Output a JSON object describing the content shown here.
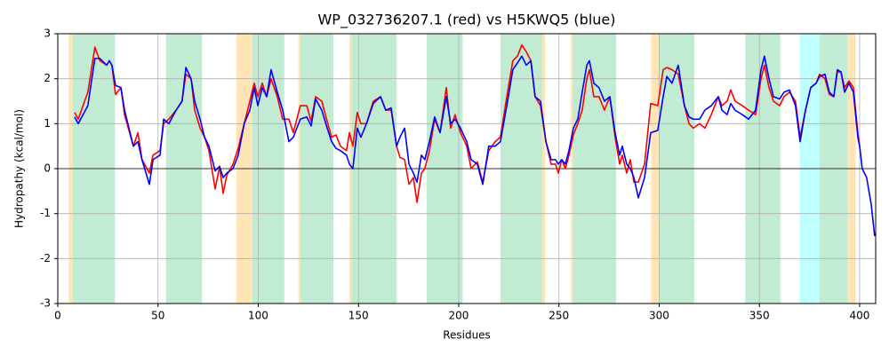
{
  "chart_data": {
    "type": "line",
    "title": "WP_032736207.1 (red) vs H5KWQ5 (blue)",
    "x_label": "Residues",
    "y_label": "Hydropathy (kcal/mol)",
    "xlim": [
      0,
      408
    ],
    "ylim": [
      -3,
      3
    ],
    "xticks": [
      0,
      50,
      100,
      150,
      200,
      250,
      300,
      350,
      400
    ],
    "yticks": [
      -3,
      -2,
      -1,
      0,
      1,
      2,
      3
    ],
    "grid": true,
    "zero_line": true,
    "regions": [
      {
        "start": 5.5,
        "end": 7.5,
        "color": "#ffe4b5"
      },
      {
        "start": 7.5,
        "end": 28.5,
        "color": "#c1ecd3"
      },
      {
        "start": 54,
        "end": 72,
        "color": "#c1ecd3"
      },
      {
        "start": 89,
        "end": 97,
        "color": "#ffe4b5"
      },
      {
        "start": 97,
        "end": 113,
        "color": "#c1ecd3"
      },
      {
        "start": 120,
        "end": 121,
        "color": "#ffe4b5"
      },
      {
        "start": 121,
        "end": 137.5,
        "color": "#c1ecd3"
      },
      {
        "start": 145.5,
        "end": 146.5,
        "color": "#ffe4b5"
      },
      {
        "start": 146.5,
        "end": 169,
        "color": "#c1ecd3"
      },
      {
        "start": 184,
        "end": 202,
        "color": "#c1ecd3"
      },
      {
        "start": 220.8,
        "end": 241.7,
        "color": "#c1ecd3"
      },
      {
        "start": 241.7,
        "end": 243,
        "color": "#ffe4b5"
      },
      {
        "start": 256,
        "end": 257,
        "color": "#ffe4b5"
      },
      {
        "start": 257,
        "end": 278.5,
        "color": "#c1ecd3"
      },
      {
        "start": 296,
        "end": 300,
        "color": "#ffe4b5"
      },
      {
        "start": 300,
        "end": 317.5,
        "color": "#c1ecd3"
      },
      {
        "start": 343,
        "end": 360.5,
        "color": "#c1ecd3"
      },
      {
        "start": 370,
        "end": 380,
        "color": "#c0ffff"
      },
      {
        "start": 380,
        "end": 394,
        "color": "#c1ecd3"
      },
      {
        "start": 394,
        "end": 398,
        "color": "#ffe4b5"
      }
    ],
    "x": [
      8.4,
      10.2,
      15,
      18.5,
      21,
      24.4,
      25.7,
      27,
      28.8,
      31.5,
      33.3,
      37.7,
      40,
      42,
      45.7,
      47.5,
      51,
      52.8,
      55.4,
      59,
      62,
      63.9,
      66.5,
      68.3,
      71,
      73.2,
      75.4,
      78.5,
      80.7,
      82.5,
      84.3,
      87.4,
      90,
      93,
      95.8,
      98,
      99.8,
      102,
      104.2,
      106.4,
      109.5,
      112.2,
      115.3,
      117.5,
      121,
      124.2,
      126.4,
      128.6,
      131.7,
      134.4,
      136.6,
      138.8,
      141,
      144,
      145.5,
      147.2,
      149.4,
      151.2,
      154,
      157.4,
      161,
      163.6,
      166.3,
      169,
      170.7,
      173,
      175.2,
      177.4,
      179.2,
      181.4,
      183.1,
      185.4,
      188,
      190.7,
      193.8,
      196,
      198.2,
      200.9,
      204,
      206.2,
      209.3,
      212,
      215,
      218.2,
      220.8,
      224,
      227,
      229.3,
      231.5,
      233.7,
      236,
      238.1,
      240.8,
      243.5,
      246.1,
      248.3,
      249.7,
      251.4,
      253.2,
      255,
      257.2,
      259.4,
      261.6,
      263.9,
      265.2,
      267.4,
      270,
      272.7,
      275.4,
      278,
      280.3,
      281.6,
      283.8,
      285.6,
      287.4,
      289.6,
      292.7,
      295.8,
      299.3,
      302,
      303.8,
      306.4,
      309.5,
      312.6,
      314.9,
      317,
      320.2,
      322.8,
      326,
      329.5,
      331.3,
      333.9,
      335.7,
      337.9,
      341.5,
      344.6,
      348.1,
      350.8,
      352.5,
      354.8,
      357,
      360.1,
      362.3,
      365,
      368,
      370.3,
      373,
      375.6,
      378.3,
      380,
      382.7,
      384.9,
      387.1,
      388.9,
      390.7,
      392.5,
      394.7,
      396.9,
      399.1,
      400,
      401.3,
      403.5,
      405.8,
      407.5
    ],
    "series": [
      {
        "color": "#ff0000",
        "values": [
          1.25,
          1.1,
          1.7,
          2.7,
          2.4,
          2.3,
          2.4,
          2.3,
          1.65,
          1.8,
          1.2,
          0.5,
          0.8,
          0.2,
          -0.1,
          0.3,
          0.4,
          1.0,
          1.1,
          1.3,
          1.5,
          2.1,
          2.0,
          1.3,
          0.9,
          0.7,
          0.4,
          -0.45,
          0.05,
          -0.55,
          -0.15,
          0.1,
          0.45,
          1.0,
          1.5,
          1.9,
          1.6,
          1.9,
          1.6,
          2.0,
          1.6,
          1.1,
          1.1,
          0.8,
          1.4,
          1.4,
          1.05,
          1.6,
          1.5,
          1.05,
          0.7,
          0.75,
          0.5,
          0.4,
          0.8,
          0.5,
          1.25,
          1.0,
          1.0,
          1.5,
          1.6,
          1.3,
          1.3,
          0.5,
          0.25,
          0.2,
          -0.35,
          -0.2,
          -0.75,
          -0.1,
          0.0,
          0.4,
          1.1,
          0.8,
          1.8,
          0.9,
          1.2,
          0.8,
          0.5,
          0.0,
          0.15,
          -0.3,
          0.4,
          0.6,
          0.7,
          1.6,
          2.4,
          2.5,
          2.75,
          2.6,
          2.4,
          1.6,
          1.4,
          0.6,
          0.1,
          0.1,
          -0.1,
          0.2,
          0.0,
          0.3,
          0.75,
          1.0,
          1.3,
          2.0,
          2.2,
          1.6,
          1.6,
          1.3,
          1.6,
          0.7,
          0.1,
          0.3,
          -0.1,
          0.2,
          -0.3,
          -0.3,
          0.1,
          1.45,
          1.4,
          2.2,
          2.25,
          2.2,
          2.1,
          1.4,
          1.0,
          0.9,
          1.0,
          0.9,
          1.2,
          1.6,
          1.4,
          1.5,
          1.75,
          1.5,
          1.4,
          1.3,
          1.2,
          2.0,
          2.3,
          1.8,
          1.5,
          1.4,
          1.6,
          1.7,
          1.5,
          0.7,
          1.3,
          1.8,
          1.9,
          2.1,
          2.0,
          1.65,
          1.6,
          2.15,
          2.15,
          1.8,
          1.95,
          1.8,
          0.8,
          0.5,
          null,
          null,
          null,
          null
        ]
      },
      {
        "color": "#0000ff",
        "values": [
          1.15,
          1.0,
          1.4,
          2.45,
          2.45,
          2.3,
          2.4,
          2.3,
          1.85,
          1.8,
          1.3,
          0.5,
          0.6,
          0.2,
          -0.35,
          0.2,
          0.3,
          1.1,
          1.0,
          1.3,
          1.5,
          2.25,
          2.0,
          1.5,
          1.1,
          0.7,
          0.5,
          -0.05,
          0.05,
          -0.2,
          -0.1,
          0.0,
          0.3,
          1.0,
          1.3,
          1.8,
          1.4,
          1.8,
          1.6,
          2.2,
          1.7,
          1.3,
          0.6,
          0.7,
          1.1,
          1.15,
          0.95,
          1.55,
          1.3,
          0.9,
          0.6,
          0.45,
          0.4,
          0.3,
          0.1,
          0.0,
          0.9,
          0.7,
          1.0,
          1.45,
          1.6,
          1.3,
          1.35,
          0.5,
          0.7,
          0.9,
          0.1,
          -0.1,
          -0.3,
          0.3,
          0.2,
          0.6,
          1.15,
          0.8,
          1.6,
          1.0,
          1.1,
          0.9,
          0.6,
          0.2,
          0.1,
          -0.35,
          0.5,
          0.5,
          0.6,
          1.4,
          2.2,
          2.35,
          2.5,
          2.3,
          2.4,
          1.6,
          1.5,
          0.6,
          0.2,
          0.2,
          0.1,
          0.2,
          0.1,
          0.4,
          0.9,
          1.1,
          1.7,
          2.3,
          2.4,
          1.9,
          1.8,
          1.5,
          1.6,
          0.8,
          0.3,
          0.5,
          0.1,
          0.0,
          -0.2,
          -0.65,
          -0.2,
          0.8,
          0.85,
          1.6,
          2.05,
          1.9,
          2.3,
          1.4,
          1.15,
          1.1,
          1.1,
          1.3,
          1.4,
          1.6,
          1.3,
          1.2,
          1.45,
          1.3,
          1.2,
          1.1,
          1.3,
          2.2,
          2.5,
          2.0,
          1.6,
          1.55,
          1.7,
          1.75,
          1.4,
          0.6,
          1.3,
          1.8,
          1.9,
          2.05,
          2.1,
          1.7,
          1.6,
          2.2,
          2.15,
          1.7,
          1.9,
          1.7,
          0.7,
          0.5,
          0.0,
          -0.2,
          -0.8,
          -1.5
        ]
      }
    ]
  }
}
